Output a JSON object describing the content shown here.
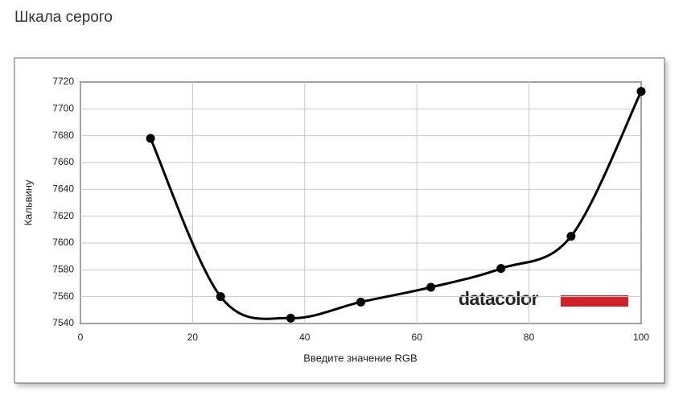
{
  "chart_data": {
    "type": "line",
    "title": "Шкала серого",
    "x_label": "Введите значение RGB",
    "y_label": "Кальвину",
    "logo": "datacolor",
    "x": [
      12.5,
      25,
      37.5,
      50,
      62.5,
      75,
      87.5,
      100
    ],
    "series": [
      {
        "color": "#000000",
        "values": [
          7678,
          7560,
          7544,
          7556,
          7567,
          7581,
          7605,
          7713
        ]
      }
    ],
    "xlim": [
      0,
      100
    ],
    "xticks": [
      0,
      20,
      40,
      60,
      80,
      100
    ],
    "ylim": [
      7540,
      7720
    ],
    "yticks": [
      7540,
      7560,
      7580,
      7600,
      7620,
      7640,
      7660,
      7680,
      7700,
      7720
    ],
    "grid": true,
    "smooth": true
  }
}
